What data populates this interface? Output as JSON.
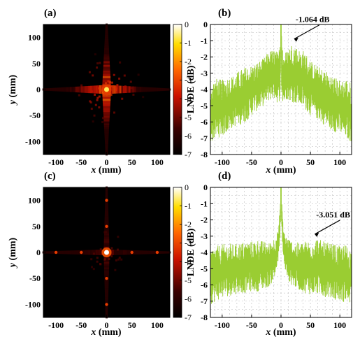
{
  "colors": {
    "line": "#9acd32",
    "heat_low": "#000000",
    "heat_mid": "#cc1100",
    "heat_high": "#ffffff"
  },
  "chart_data": [
    {
      "panel": "(a)",
      "type": "heatmap",
      "xlabel_var": "x",
      "xlabel_unit": " (mm)",
      "ylabel_var": "y",
      "ylabel_unit": " (mm)",
      "xlim": [
        -125,
        125
      ],
      "ylim": [
        -125,
        125
      ],
      "xticks": [
        -100,
        -50,
        0,
        50,
        100
      ],
      "yticks": [
        -100,
        -50,
        0,
        50,
        100
      ],
      "colorbar": {
        "range": [
          -7,
          0
        ],
        "ticks": [
          0,
          -1,
          -2,
          -3,
          -4,
          -5,
          -6,
          -7
        ]
      },
      "pattern": {
        "cross_strength": 0.85,
        "center_peak": 0.9,
        "spread": 1.0
      }
    },
    {
      "panel": "(b)",
      "type": "line",
      "xlabel_var": "x",
      "xlabel_unit": " (mm)",
      "ylabel": "LNDE (dB)",
      "xlim": [
        -120,
        120
      ],
      "ylim": [
        -8,
        0
      ],
      "xticks": [
        -100,
        -50,
        0,
        50,
        100
      ],
      "yticks": [
        0,
        -1,
        -2,
        -3,
        -4,
        -5,
        -6,
        -7,
        -8
      ],
      "grid": true,
      "annotation": {
        "text": "-1.064 dB",
        "x": 20,
        "y": -1.064
      },
      "series": [
        {
          "x": [
            -120,
            -110,
            -100,
            -90,
            -80,
            -70,
            -60,
            -50,
            -40,
            -30,
            -20,
            -10,
            -4,
            0,
            4,
            10,
            20,
            30,
            40,
            50,
            60,
            70,
            80,
            90,
            100,
            110,
            120
          ],
          "upper": [
            -3.5,
            -3.3,
            -3.4,
            -3.2,
            -3.1,
            -2.8,
            -2.6,
            -2.5,
            -2.3,
            -2.1,
            -1.6,
            -1.5,
            -1.8,
            0,
            -1.8,
            -1.6,
            -1.064,
            -1.5,
            -1.6,
            -2.2,
            -2.5,
            -2.7,
            -2.9,
            -3.2,
            -3.4,
            -3.3,
            -3.6
          ],
          "lower": [
            -7.3,
            -7.0,
            -6.9,
            -6.6,
            -6.3,
            -6.2,
            -6.0,
            -5.6,
            -5.3,
            -5.0,
            -4.7,
            -4.6,
            -5.0,
            -4.0,
            -5.0,
            -4.6,
            -4.8,
            -5.0,
            -5.2,
            -5.6,
            -5.8,
            -6.1,
            -6.4,
            -6.6,
            -6.8,
            -7.0,
            -7.3
          ]
        }
      ]
    },
    {
      "panel": "(c)",
      "type": "heatmap",
      "xlabel_var": "x",
      "xlabel_unit": " (mm)",
      "ylabel_var": "y",
      "ylabel_unit": " (mm)",
      "xlim": [
        -125,
        125
      ],
      "ylim": [
        -125,
        125
      ],
      "xticks": [
        -100,
        -50,
        0,
        50,
        100
      ],
      "yticks": [
        -100,
        -50,
        0,
        50,
        100
      ],
      "colorbar": {
        "range": [
          -7,
          0
        ],
        "ticks": [
          0,
          -1,
          -2,
          -3,
          -4,
          -5,
          -6,
          -7
        ]
      },
      "pattern": {
        "cross_strength": 0.35,
        "center_peak": 1.0,
        "spread": 0.55
      }
    },
    {
      "panel": "(d)",
      "type": "line",
      "xlabel_var": "x",
      "xlabel_unit": " (mm)",
      "ylabel": "LNDE (dB)",
      "xlim": [
        -120,
        120
      ],
      "ylim": [
        -8,
        0
      ],
      "xticks": [
        -100,
        -50,
        0,
        50,
        100
      ],
      "yticks": [
        0,
        -1,
        -2,
        -3,
        -4,
        -5,
        -6,
        -7,
        -8
      ],
      "grid": true,
      "annotation": {
        "text": "-3.051 dB",
        "x": 55,
        "y": -3.051
      },
      "series": [
        {
          "x": [
            -120,
            -110,
            -100,
            -90,
            -80,
            -70,
            -60,
            -50,
            -40,
            -30,
            -20,
            -10,
            -4,
            0,
            4,
            10,
            20,
            30,
            40,
            50,
            60,
            70,
            80,
            90,
            100,
            110,
            120
          ],
          "upper": [
            -3.8,
            -3.6,
            -3.5,
            -3.4,
            -3.5,
            -3.4,
            -3.3,
            -3.3,
            -3.2,
            -3.3,
            -3.4,
            -3.0,
            -2.5,
            0,
            -2.5,
            -3.0,
            -3.3,
            -3.4,
            -3.3,
            -3.2,
            -3.051,
            -3.3,
            -3.4,
            -3.5,
            -3.6,
            -3.5,
            -3.8
          ],
          "lower": [
            -7.2,
            -7.0,
            -6.8,
            -6.7,
            -6.6,
            -6.5,
            -6.5,
            -6.4,
            -6.4,
            -6.3,
            -6.1,
            -5.6,
            -4.5,
            -2.0,
            -4.5,
            -5.6,
            -6.1,
            -6.3,
            -6.5,
            -6.6,
            -6.6,
            -6.7,
            -6.8,
            -6.9,
            -7.0,
            -7.1,
            -7.2
          ]
        }
      ]
    }
  ]
}
